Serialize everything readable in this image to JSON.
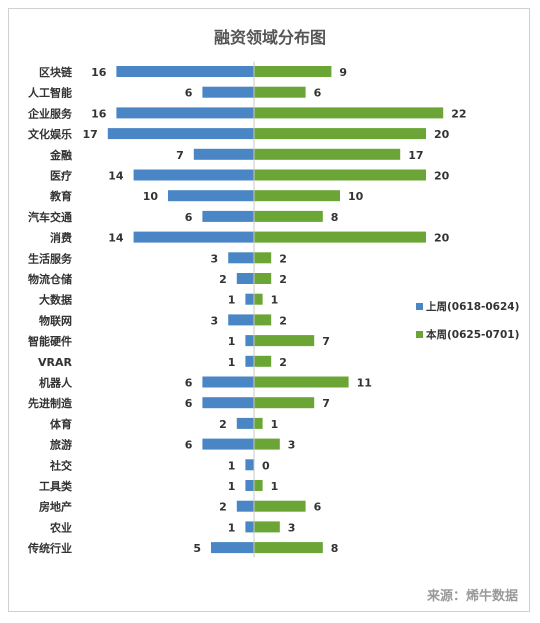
{
  "chart_data": {
    "type": "bar",
    "title": "融资领域分布图",
    "source": "来源：烯牛数据",
    "categories": [
      "区块链",
      "人工智能",
      "企业服务",
      "文化娱乐",
      "金融",
      "医疗",
      "教育",
      "汽车交通",
      "消费",
      "生活服务",
      "物流仓储",
      "大数据",
      "物联网",
      "智能硬件",
      "VRAR",
      "机器人",
      "先进制造",
      "体育",
      "旅游",
      "社交",
      "工具类",
      "房地产",
      "农业",
      "传统行业"
    ],
    "series": [
      {
        "name": "上周(0618-0624)",
        "color": "#4a86c5",
        "values": [
          16,
          6,
          16,
          17,
          7,
          14,
          10,
          6,
          14,
          3,
          2,
          1,
          3,
          1,
          1,
          6,
          6,
          2,
          6,
          1,
          1,
          2,
          1,
          5
        ]
      },
      {
        "name": "本周(0625-0701)",
        "color": "#6aa535",
        "values": [
          9,
          6,
          22,
          20,
          17,
          20,
          10,
          8,
          20,
          2,
          2,
          1,
          2,
          7,
          2,
          11,
          7,
          1,
          3,
          0,
          1,
          6,
          3,
          8
        ]
      }
    ],
    "orientation": "horizontal-diverging",
    "legend_position": "right",
    "grid": false
  }
}
